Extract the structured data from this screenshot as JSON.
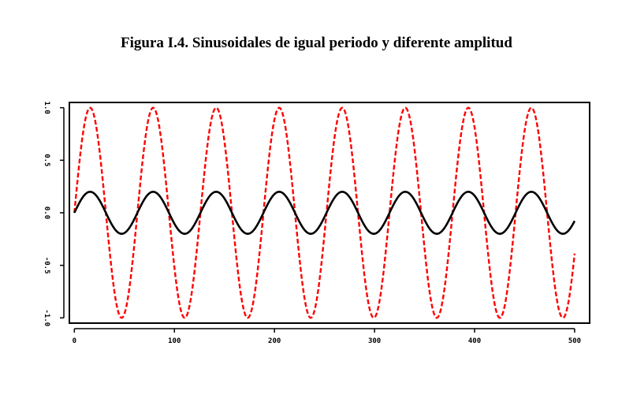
{
  "title": "Figura I.4. Sinusoidales de igual periodo y diferente amplitud",
  "chart_data": {
    "type": "line",
    "title": "Figura I.4. Sinusoidales de igual periodo y diferente amplitud",
    "xlabel": "",
    "ylabel": "",
    "xlim": [
      -5,
      515
    ],
    "ylim": [
      -1.05,
      1.05
    ],
    "x_ticks": [
      0,
      100,
      200,
      300,
      400,
      500
    ],
    "x_tick_labels": [
      "0",
      "100",
      "200",
      "300",
      "400",
      "500"
    ],
    "y_ticks": [
      1.0,
      0.5,
      0.0,
      -0.5,
      -1.0
    ],
    "y_tick_labels": [
      "1.0",
      "0.5",
      "0.0",
      "-0.5",
      "-1.0"
    ],
    "grid": false,
    "legend": "none",
    "x": {
      "start": 0,
      "end": 500,
      "step": 1
    },
    "series": [
      {
        "amplitude": 1.0,
        "period": 63,
        "phase": 0,
        "color": "#ff0000",
        "style": "dashed"
      },
      {
        "amplitude": 0.2,
        "period": 63,
        "phase": 0,
        "color": "#000000",
        "style": "solid"
      }
    ]
  }
}
